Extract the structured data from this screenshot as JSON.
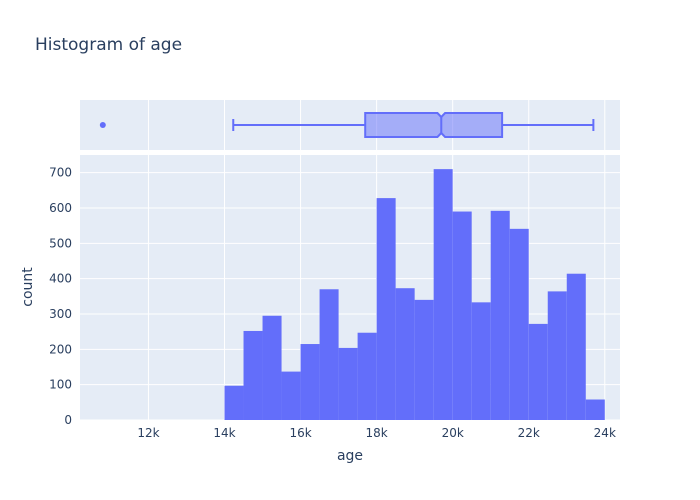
{
  "chart_data": {
    "type": "bar",
    "title": "Histogram of age",
    "xlabel": "age",
    "ylabel": "count",
    "xlim": [
      10200,
      24400
    ],
    "ylim": [
      0,
      750
    ],
    "x_ticks": [
      12000,
      14000,
      16000,
      18000,
      20000,
      22000,
      24000
    ],
    "x_tick_labels": [
      "12k",
      "14k",
      "16k",
      "18k",
      "20k",
      "22k",
      "24k"
    ],
    "y_ticks": [
      0,
      100,
      200,
      300,
      400,
      500,
      600,
      700
    ],
    "y_tick_labels": [
      "0",
      "100",
      "200",
      "300",
      "400",
      "500",
      "600",
      "700"
    ],
    "grid": true,
    "bin_size": 500,
    "bins": [
      {
        "x0": 14000,
        "x1": 14500,
        "count": 97
      },
      {
        "x0": 14500,
        "x1": 15000,
        "count": 252
      },
      {
        "x0": 15000,
        "x1": 15500,
        "count": 295
      },
      {
        "x0": 15500,
        "x1": 16000,
        "count": 137
      },
      {
        "x0": 16000,
        "x1": 16500,
        "count": 215
      },
      {
        "x0": 16500,
        "x1": 17000,
        "count": 370
      },
      {
        "x0": 17000,
        "x1": 17500,
        "count": 204
      },
      {
        "x0": 17500,
        "x1": 18000,
        "count": 247
      },
      {
        "x0": 18000,
        "x1": 18500,
        "count": 628
      },
      {
        "x0": 18500,
        "x1": 19000,
        "count": 373
      },
      {
        "x0": 19000,
        "x1": 19500,
        "count": 340
      },
      {
        "x0": 19500,
        "x1": 20000,
        "count": 710
      },
      {
        "x0": 20000,
        "x1": 20500,
        "count": 590
      },
      {
        "x0": 20500,
        "x1": 21000,
        "count": 333
      },
      {
        "x0": 21000,
        "x1": 21500,
        "count": 592
      },
      {
        "x0": 21500,
        "x1": 22000,
        "count": 541
      },
      {
        "x0": 22000,
        "x1": 22500,
        "count": 272
      },
      {
        "x0": 22500,
        "x1": 23000,
        "count": 364
      },
      {
        "x0": 23000,
        "x1": 23500,
        "count": 414
      },
      {
        "x0": 23500,
        "x1": 24000,
        "count": 58
      }
    ],
    "box": {
      "lower_fence": 14230,
      "q1": 17700,
      "median": 19700,
      "q3": 21300,
      "upper_fence": 23700,
      "notch_low": 19600,
      "notch_high": 19800,
      "outliers": [
        10800
      ]
    },
    "colors": {
      "bar": "#636efa",
      "plot_bg": "#e5ecf6",
      "grid": "#ffffff",
      "text": "#2a3f5f"
    }
  }
}
